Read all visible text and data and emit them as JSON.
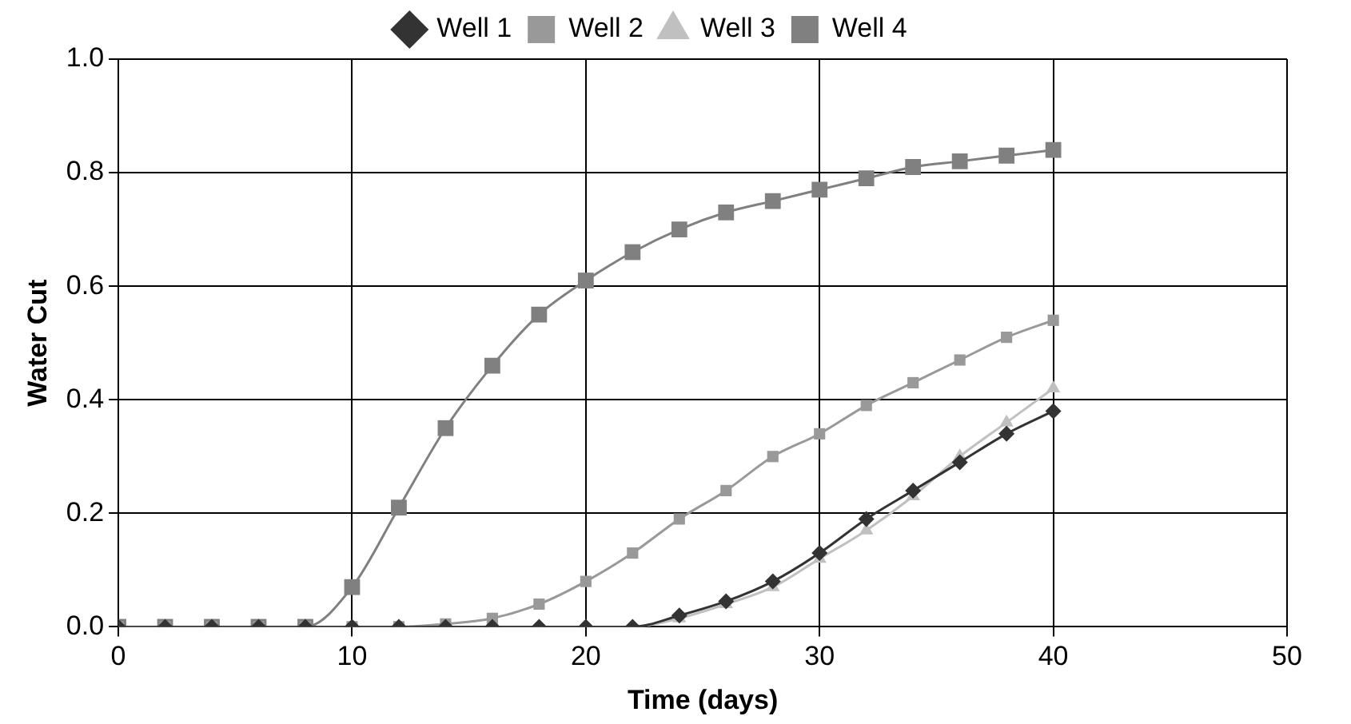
{
  "chart_data": {
    "type": "line",
    "xlabel": "Time (days)",
    "ylabel": "Water Cut",
    "x": [
      0,
      2,
      4,
      6,
      8,
      10,
      12,
      14,
      16,
      18,
      20,
      22,
      24,
      26,
      28,
      30,
      32,
      34,
      36,
      38,
      40
    ],
    "series": [
      {
        "name": "Well 1",
        "color": "#333333",
        "marker": "diamond",
        "values": [
          0,
          0,
          0,
          0,
          0,
          0,
          0,
          0,
          0,
          0,
          0,
          0,
          0.02,
          0.045,
          0.08,
          0.13,
          0.19,
          0.24,
          0.29,
          0.34,
          0.38
        ]
      },
      {
        "name": "Well 2",
        "color": "#999999",
        "marker": "square",
        "values": [
          0,
          0,
          0,
          0,
          0,
          0,
          0,
          0.005,
          0.015,
          0.04,
          0.08,
          0.13,
          0.19,
          0.24,
          0.3,
          0.34,
          0.39,
          0.43,
          0.47,
          0.51,
          0.54
        ]
      },
      {
        "name": "Well 3",
        "color": "#c0c0c0",
        "marker": "triangle",
        "values": [
          0,
          0,
          0,
          0,
          0,
          0,
          0,
          0,
          0,
          0,
          0,
          0,
          0.015,
          0.04,
          0.07,
          0.12,
          0.17,
          0.23,
          0.3,
          0.36,
          0.42
        ]
      },
      {
        "name": "Well 4",
        "color": "#808080",
        "marker": "square",
        "values": [
          0,
          0,
          0,
          0,
          0,
          0.07,
          0.21,
          0.35,
          0.46,
          0.55,
          0.61,
          0.66,
          0.7,
          0.73,
          0.75,
          0.77,
          0.79,
          0.81,
          0.82,
          0.83,
          0.84
        ]
      }
    ],
    "xlim": [
      0,
      50
    ],
    "xticks": [
      0,
      10,
      20,
      30,
      40,
      50
    ],
    "ylim": [
      0,
      1
    ],
    "yticks": [
      {
        "value": 0,
        "label": "0.0"
      },
      0.2,
      0.4,
      0.6,
      0.8,
      {
        "value": 1,
        "label": "1.0"
      }
    ],
    "grid": true,
    "legend": "top",
    "line_style": "solid"
  }
}
